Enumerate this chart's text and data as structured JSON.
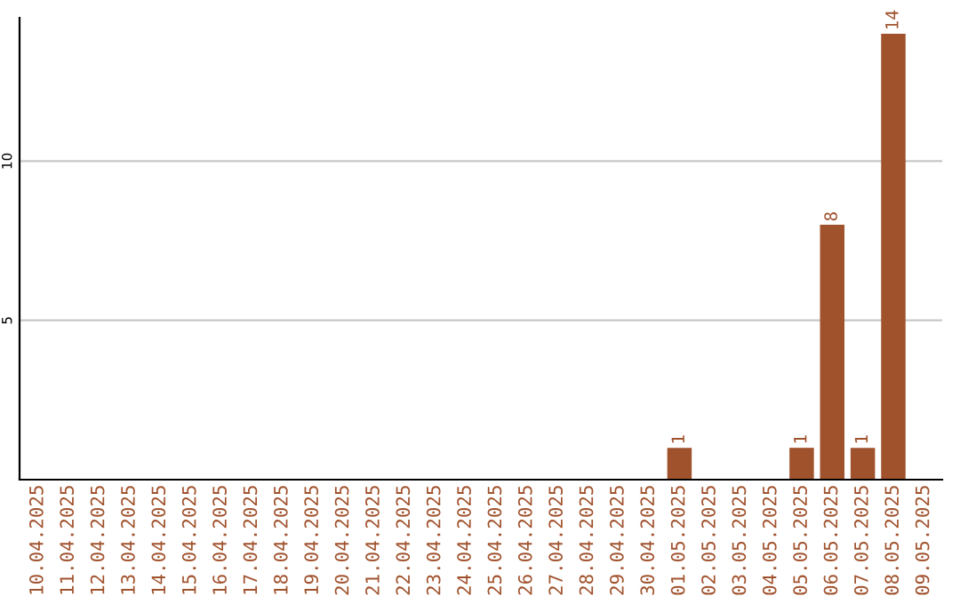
{
  "chart_data": {
    "type": "bar",
    "categories": [
      "10.04.2025",
      "11.04.2025",
      "12.04.2025",
      "13.04.2025",
      "14.04.2025",
      "15.04.2025",
      "16.04.2025",
      "17.04.2025",
      "18.04.2025",
      "19.04.2025",
      "20.04.2025",
      "21.04.2025",
      "22.04.2025",
      "23.04.2025",
      "24.04.2025",
      "25.04.2025",
      "26.04.2025",
      "27.04.2025",
      "28.04.2025",
      "29.04.2025",
      "30.04.2025",
      "01.05.2025",
      "02.05.2025",
      "03.05.2025",
      "04.05.2025",
      "05.05.2025",
      "06.05.2025",
      "07.05.2025",
      "08.05.2025",
      "09.05.2025"
    ],
    "values": [
      0,
      0,
      0,
      0,
      0,
      0,
      0,
      0,
      0,
      0,
      0,
      0,
      0,
      0,
      0,
      0,
      0,
      0,
      0,
      0,
      0,
      1,
      0,
      0,
      0,
      1,
      8,
      1,
      14,
      0
    ],
    "value_labels": [
      null,
      null,
      null,
      null,
      null,
      null,
      null,
      null,
      null,
      null,
      null,
      null,
      null,
      null,
      null,
      null,
      null,
      null,
      null,
      null,
      null,
      "1",
      null,
      null,
      null,
      "1",
      "8",
      "1",
      "14",
      null
    ],
    "color": "#a0522d",
    "ylim": [
      0,
      14.5
    ],
    "yticks": [
      5,
      10
    ],
    "grid": "y",
    "legend": false
  }
}
